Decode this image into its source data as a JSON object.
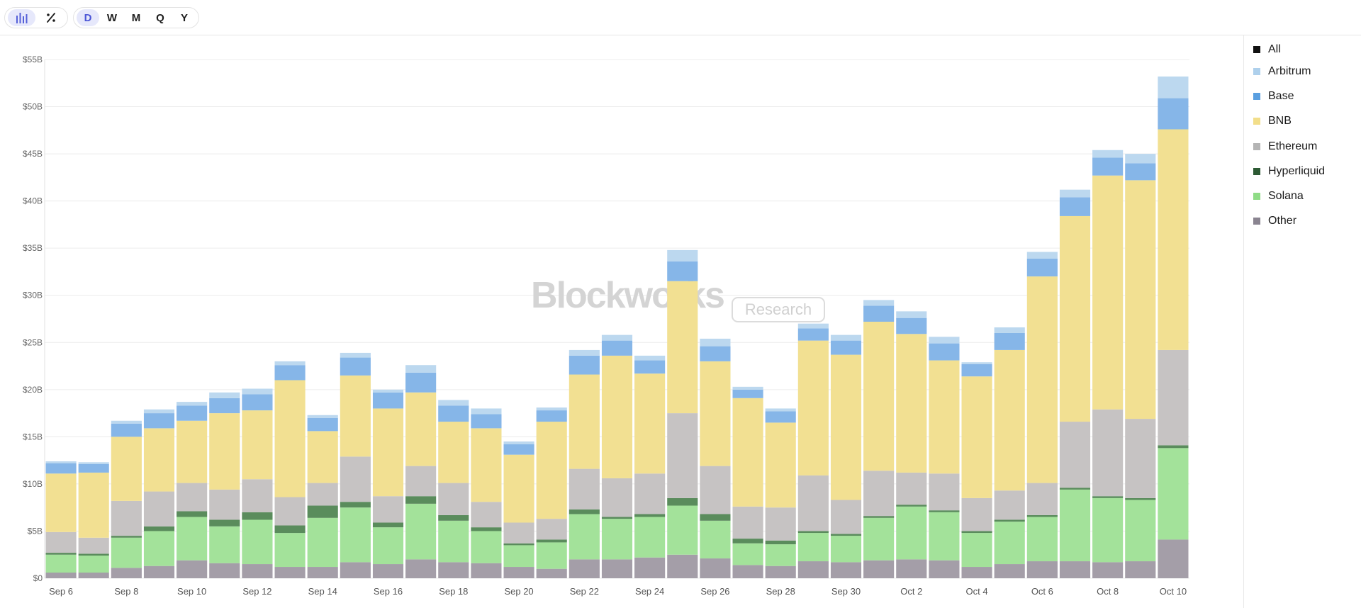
{
  "toolbar": {
    "chart_modes": [
      {
        "icon": "bar-chart-icon",
        "active": true
      },
      {
        "icon": "percent-icon",
        "active": false
      }
    ],
    "periods": [
      {
        "label": "D",
        "active": true
      },
      {
        "label": "W",
        "active": false
      },
      {
        "label": "M",
        "active": false
      },
      {
        "label": "Q",
        "active": false
      },
      {
        "label": "Y",
        "active": false
      }
    ]
  },
  "watermark": {
    "brand": "Blockworks",
    "badge": "Research"
  },
  "chart_data": {
    "type": "bar",
    "stacked": true,
    "title": "",
    "xlabel": "",
    "ylabel": "",
    "ylim": [
      0,
      55
    ],
    "y_unit": "B",
    "y_ticks": [
      "$0",
      "$5B",
      "$10B",
      "$15B",
      "$20B",
      "$25B",
      "$30B",
      "$35B",
      "$40B",
      "$45B",
      "$50B",
      "$55B"
    ],
    "grid": true,
    "legend_position": "right",
    "categories": [
      "Sep 6",
      "Sep 7",
      "Sep 8",
      "Sep 9",
      "Sep 10",
      "Sep 11",
      "Sep 12",
      "Sep 13",
      "Sep 14",
      "Sep 15",
      "Sep 16",
      "Sep 17",
      "Sep 18",
      "Sep 19",
      "Sep 20",
      "Sep 21",
      "Sep 22",
      "Sep 23",
      "Sep 24",
      "Sep 25",
      "Sep 26",
      "Sep 27",
      "Sep 28",
      "Sep 29",
      "Sep 30",
      "Oct 1",
      "Oct 2",
      "Oct 3",
      "Oct 4",
      "Oct 5",
      "Oct 6",
      "Oct 7",
      "Oct 8",
      "Oct 9",
      "Oct 10"
    ],
    "x_tick_labels": [
      "Sep 6",
      "Sep 8",
      "Sep 10",
      "Sep 12",
      "Sep 14",
      "Sep 16",
      "Sep 18",
      "Sep 20",
      "Sep 22",
      "Sep 24",
      "Sep 26",
      "Sep 28",
      "Sep 30",
      "Oct 2",
      "Oct 4",
      "Oct 6",
      "Oct 8",
      "Oct 10"
    ],
    "legend": [
      {
        "name": "All",
        "color": "#111111"
      },
      {
        "name": "Arbitrum",
        "color": "#aed0ec"
      },
      {
        "name": "Base",
        "color": "#5a9fe0"
      },
      {
        "name": "BNB",
        "color": "#f2de8a"
      },
      {
        "name": "Ethereum",
        "color": "#b4b4b4"
      },
      {
        "name": "Hyperliquid",
        "color": "#2d5a34"
      },
      {
        "name": "Solana",
        "color": "#8fdc86"
      },
      {
        "name": "Other",
        "color": "#8a8490"
      }
    ],
    "series": [
      {
        "name": "Other",
        "color": "#a49ea8",
        "values": [
          0.6,
          0.6,
          1.1,
          1.3,
          1.9,
          1.6,
          1.5,
          1.2,
          1.2,
          1.7,
          1.5,
          2.0,
          1.7,
          1.6,
          1.2,
          1.0,
          2.0,
          2.0,
          2.2,
          2.5,
          2.1,
          1.4,
          1.3,
          1.8,
          1.7,
          1.9,
          2.0,
          1.9,
          1.2,
          1.5,
          1.8,
          1.8,
          1.7,
          1.8,
          4.1
        ]
      },
      {
        "name": "Solana",
        "color": "#a3e29a",
        "values": [
          1.9,
          1.8,
          3.2,
          3.7,
          4.6,
          3.9,
          4.7,
          3.6,
          5.2,
          5.8,
          3.9,
          5.9,
          4.4,
          3.4,
          2.3,
          2.8,
          4.8,
          4.3,
          4.3,
          5.2,
          4.0,
          2.3,
          2.3,
          3.0,
          2.8,
          4.5,
          5.6,
          5.1,
          3.6,
          4.5,
          4.7,
          7.6,
          6.8,
          6.5,
          9.7
        ]
      },
      {
        "name": "Hyperliquid",
        "color": "#5a8c5c",
        "values": [
          0.2,
          0.2,
          0.2,
          0.5,
          0.6,
          0.7,
          0.8,
          0.8,
          1.3,
          0.6,
          0.5,
          0.8,
          0.6,
          0.4,
          0.2,
          0.3,
          0.5,
          0.2,
          0.3,
          0.8,
          0.7,
          0.5,
          0.4,
          0.2,
          0.2,
          0.2,
          0.2,
          0.2,
          0.2,
          0.2,
          0.2,
          0.2,
          0.2,
          0.2,
          0.3
        ]
      },
      {
        "name": "Ethereum",
        "color": "#c6c3c3",
        "values": [
          2.2,
          1.7,
          3.7,
          3.7,
          3.0,
          3.2,
          3.5,
          3.0,
          2.4,
          4.8,
          2.8,
          3.2,
          3.4,
          2.7,
          2.2,
          2.2,
          4.3,
          4.1,
          4.3,
          9.0,
          5.1,
          3.4,
          3.5,
          5.9,
          3.6,
          4.8,
          3.4,
          3.9,
          3.5,
          3.1,
          3.4,
          7.0,
          9.2,
          8.4,
          10.1
        ]
      },
      {
        "name": "BNB",
        "color": "#f2e092",
        "values": [
          6.2,
          6.9,
          6.8,
          6.7,
          6.6,
          8.1,
          7.3,
          12.4,
          5.5,
          8.6,
          9.3,
          7.8,
          6.5,
          7.8,
          7.2,
          10.3,
          10.0,
          13.0,
          10.6,
          14.0,
          11.1,
          11.5,
          9.0,
          14.3,
          15.4,
          15.8,
          14.7,
          12.0,
          12.9,
          14.9,
          21.9,
          21.8,
          24.8,
          25.3,
          23.4
        ]
      },
      {
        "name": "Base",
        "color": "#86b6e8",
        "values": [
          1.1,
          0.9,
          1.4,
          1.6,
          1.6,
          1.6,
          1.7,
          1.6,
          1.4,
          1.9,
          1.7,
          2.1,
          1.7,
          1.5,
          1.1,
          1.2,
          2.0,
          1.6,
          1.4,
          2.1,
          1.6,
          0.9,
          1.2,
          1.3,
          1.5,
          1.7,
          1.7,
          1.8,
          1.3,
          1.8,
          1.9,
          2.0,
          1.9,
          1.8,
          3.3
        ]
      },
      {
        "name": "Arbitrum",
        "color": "#bcd8ef",
        "values": [
          0.2,
          0.2,
          0.3,
          0.4,
          0.4,
          0.6,
          0.6,
          0.4,
          0.3,
          0.5,
          0.3,
          0.8,
          0.6,
          0.6,
          0.3,
          0.3,
          0.6,
          0.6,
          0.5,
          1.2,
          0.8,
          0.3,
          0.3,
          0.5,
          0.6,
          0.6,
          0.7,
          0.7,
          0.2,
          0.6,
          0.7,
          0.8,
          0.8,
          1.0,
          2.3
        ]
      }
    ]
  }
}
